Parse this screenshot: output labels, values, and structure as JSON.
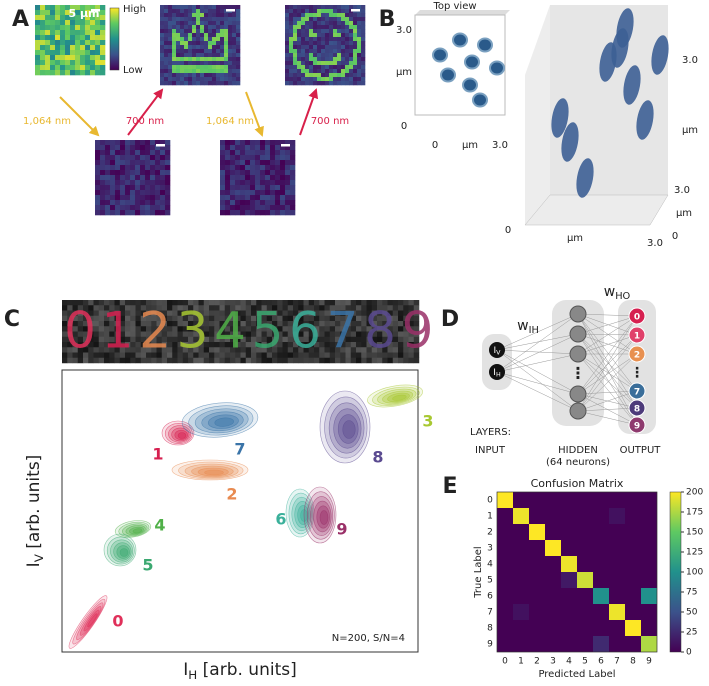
{
  "panel_a": {
    "label": "A",
    "scale": "5 µm",
    "colorbar_high": "High",
    "colorbar_low": "Low",
    "arrows": [
      "1,064 nm",
      "700 nm",
      "1,064 nm",
      "700 nm"
    ]
  },
  "panel_b": {
    "label": "B",
    "inset_title": "Top view",
    "inset_y_ticks": [
      "3.0",
      "µm",
      "0"
    ],
    "inset_x_ticks": [
      "0",
      "µm",
      "3.0"
    ],
    "z_ticks": [
      "3.0",
      "µm"
    ],
    "y_ticks": [
      "3.0",
      "µm",
      "0"
    ],
    "x_ticks": [
      "0",
      "µm",
      "3.0"
    ]
  },
  "panel_c": {
    "label": "C",
    "digits": [
      "0",
      "1",
      "2",
      "3",
      "4",
      "5",
      "6",
      "7",
      "8",
      "9"
    ],
    "y_label": {
      "main": "I",
      "sub": "V",
      "rest": " [arb. units]"
    },
    "x_label": {
      "main": "I",
      "sub": "H",
      "rest": " [arb. units]"
    },
    "cluster_labels": [
      "0",
      "1",
      "2",
      "3",
      "4",
      "5",
      "6",
      "7",
      "8",
      "9"
    ],
    "note": "N=200, S/N=4"
  },
  "panel_d": {
    "label": "D",
    "w_ih": {
      "main": "w",
      "sub": "IH"
    },
    "w_ho": {
      "main": "w",
      "sub": "HO"
    },
    "inputs": [
      {
        "main": "I",
        "sub": "V"
      },
      {
        "main": "I",
        "sub": "H"
      }
    ],
    "hidden_gap": "⋮",
    "outputs": [
      "0",
      "1",
      "2",
      "⋮",
      "7",
      "8",
      "9"
    ],
    "layers_title": "LAYERS:",
    "layers": [
      "INPUT",
      "HIDDEN",
      "OUTPUT"
    ],
    "hidden_note": "(64 neurons)"
  },
  "panel_e": {
    "label": "E",
    "title": "Confusion Matrix",
    "y_label": "True Label",
    "x_label": "Predicted Label",
    "classes": [
      "0",
      "1",
      "2",
      "3",
      "4",
      "5",
      "6",
      "7",
      "8",
      "9"
    ],
    "matrix": [
      [
        200,
        0,
        0,
        0,
        0,
        0,
        0,
        0,
        0,
        0
      ],
      [
        0,
        195,
        0,
        0,
        0,
        0,
        0,
        10,
        0,
        0
      ],
      [
        0,
        0,
        200,
        0,
        0,
        0,
        0,
        0,
        0,
        0
      ],
      [
        0,
        0,
        0,
        200,
        0,
        0,
        0,
        0,
        0,
        0
      ],
      [
        0,
        0,
        0,
        0,
        195,
        0,
        0,
        0,
        0,
        0
      ],
      [
        0,
        0,
        0,
        0,
        15,
        185,
        0,
        0,
        0,
        0
      ],
      [
        0,
        0,
        0,
        0,
        0,
        0,
        100,
        0,
        0,
        100
      ],
      [
        0,
        10,
        0,
        0,
        0,
        0,
        0,
        195,
        0,
        0
      ],
      [
        0,
        0,
        0,
        0,
        0,
        0,
        0,
        0,
        200,
        0
      ],
      [
        0,
        0,
        0,
        0,
        0,
        0,
        25,
        0,
        0,
        175
      ]
    ],
    "clim": [
      0,
      200
    ],
    "colorbar_ticks": [
      0,
      25,
      50,
      75,
      100,
      125,
      150,
      175,
      200
    ]
  }
}
